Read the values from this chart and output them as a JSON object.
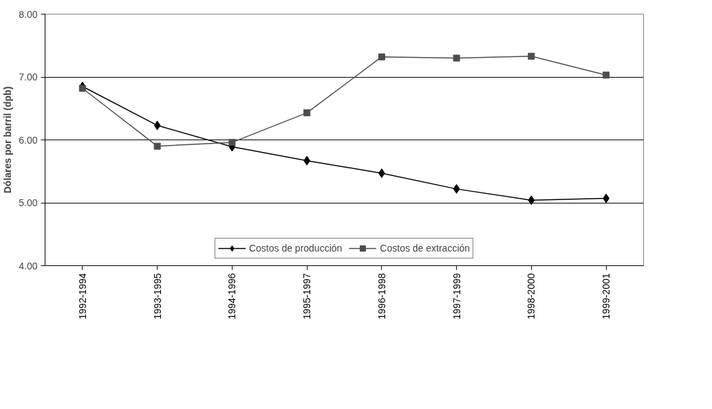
{
  "chart_data": {
    "type": "line",
    "ylabel": "Dólares por barril (dpb)",
    "categories": [
      "1992-1994",
      "1993-1995",
      "1994-1996",
      "1995-1997",
      "1996-1998",
      "1997-1999",
      "1998-2000",
      "1999-2001"
    ],
    "series": [
      {
        "name": "Costos de producción",
        "color": "#000000",
        "marker": "diamond",
        "values": [
          6.85,
          6.23,
          5.89,
          5.67,
          5.47,
          5.22,
          5.04,
          5.07
        ]
      },
      {
        "name": "Costos de extracción",
        "color": "#4d4d4d",
        "marker": "square",
        "values": [
          6.82,
          5.9,
          5.96,
          6.43,
          7.32,
          7.3,
          7.33,
          7.03
        ]
      }
    ],
    "ylim": [
      4,
      8
    ],
    "yticks": [
      {
        "value": 4,
        "label": "4.00"
      },
      {
        "value": 5,
        "label": "5.00"
      },
      {
        "value": 6,
        "label": "6.00"
      },
      {
        "value": 7,
        "label": "7.00"
      },
      {
        "value": 8,
        "label": "8.00"
      }
    ],
    "grid": "y",
    "legend": "bottom",
    "line_style": "solid"
  }
}
